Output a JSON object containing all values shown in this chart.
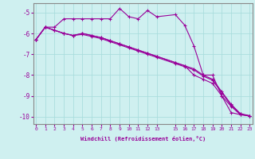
{
  "xlabel": "Windchill (Refroidissement éolien,°C)",
  "background_color": "#cff0f0",
  "grid_color": "#aadddd",
  "line_color": "#990099",
  "x_ticks": [
    0,
    1,
    2,
    3,
    4,
    5,
    6,
    7,
    8,
    9,
    10,
    11,
    12,
    13,
    15,
    16,
    17,
    18,
    19,
    20,
    21,
    22,
    23
  ],
  "xlim": [
    -0.3,
    23.3
  ],
  "ylim": [
    -10.35,
    -4.55
  ],
  "yticks": [
    -10,
    -9,
    -8,
    -7,
    -6,
    -5
  ],
  "series": [
    [
      0,
      1,
      2,
      3,
      4,
      5,
      6,
      7,
      8,
      9,
      10,
      11,
      12,
      13,
      15,
      16,
      17,
      18,
      19,
      20,
      21,
      22,
      23
    ],
    [
      -6.3,
      -5.7,
      -5.7,
      -5.3,
      -5.3,
      -5.3,
      -5.3,
      -5.3,
      -5.3,
      -4.8,
      -5.2,
      -5.3,
      -4.9,
      -5.2,
      -5.1,
      -5.6,
      -6.6,
      -8.0,
      -8.0,
      -9.0,
      -9.8,
      -9.9,
      -9.95
    ],
    [
      0,
      1,
      2,
      3,
      4,
      5,
      6,
      7,
      8,
      9,
      10,
      11,
      12,
      13,
      15,
      16,
      17,
      18,
      19,
      20,
      21,
      22,
      23
    ],
    [
      -6.3,
      -5.7,
      -5.85,
      -6.0,
      -6.1,
      -6.0,
      -6.1,
      -6.2,
      -6.35,
      -6.5,
      -6.65,
      -6.8,
      -6.95,
      -7.1,
      -7.4,
      -7.55,
      -7.7,
      -8.0,
      -8.2,
      -8.8,
      -9.4,
      -9.85,
      -9.95
    ],
    [
      0,
      1,
      2,
      3,
      4,
      5,
      6,
      7,
      8,
      9,
      10,
      11,
      12,
      13,
      15,
      16,
      17,
      18,
      19,
      20,
      21,
      22,
      23
    ],
    [
      -6.3,
      -5.7,
      -5.85,
      -6.0,
      -6.1,
      -6.05,
      -6.15,
      -6.25,
      -6.4,
      -6.55,
      -6.7,
      -6.85,
      -7.0,
      -7.15,
      -7.45,
      -7.6,
      -7.75,
      -8.05,
      -8.25,
      -8.85,
      -9.45,
      -9.87,
      -9.97
    ],
    [
      0,
      1,
      2,
      3,
      4,
      5,
      6,
      7,
      8,
      9,
      10,
      11,
      12,
      13,
      15,
      16,
      17,
      18,
      19,
      20,
      21,
      22,
      23
    ],
    [
      -6.3,
      -5.7,
      -5.85,
      -6.0,
      -6.1,
      -6.0,
      -6.1,
      -6.2,
      -6.35,
      -6.5,
      -6.65,
      -6.8,
      -6.95,
      -7.1,
      -7.4,
      -7.55,
      -8.0,
      -8.2,
      -8.4,
      -9.0,
      -9.5,
      -9.9,
      -9.97
    ]
  ]
}
